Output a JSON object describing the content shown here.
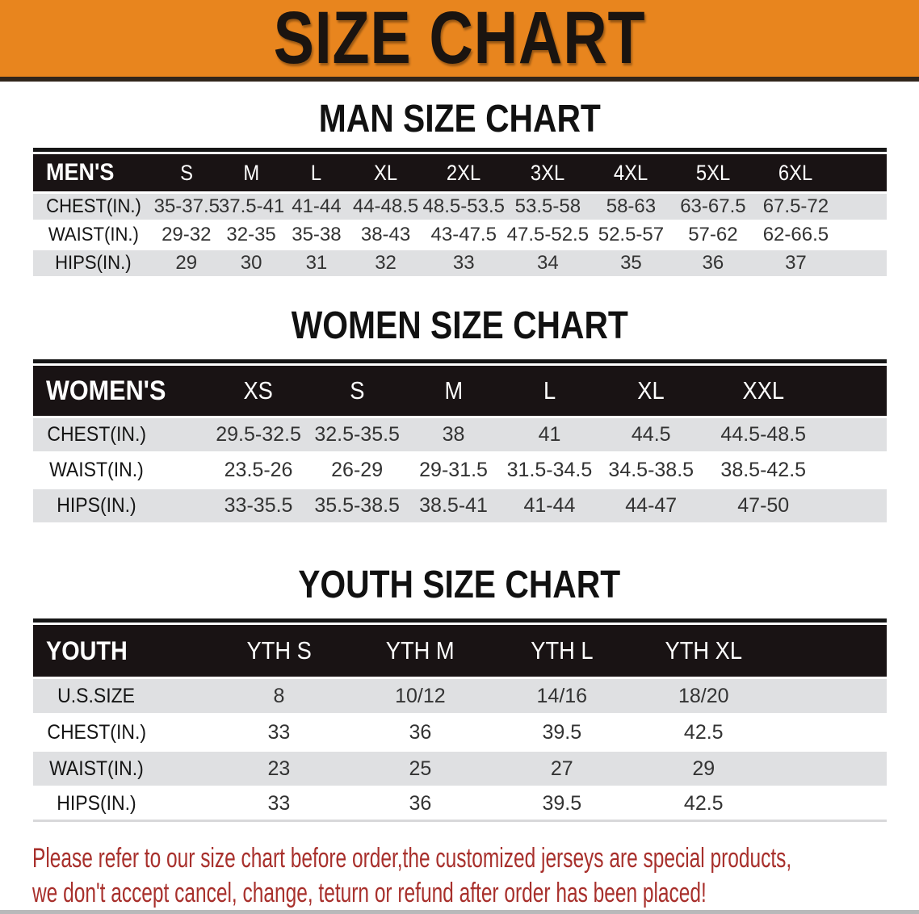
{
  "banner": {
    "title": "SIZE CHART"
  },
  "colors": {
    "banner_bg": "#E8851E",
    "banner_text": "#1A1410",
    "table_header_bg": "#191314",
    "row_gray": "#DFE0E2",
    "disclaimer_red": "#A8302C",
    "bottom_bar": "#B8B9BA"
  },
  "tables": [
    {
      "id": "men",
      "heading": "MAN SIZE CHART",
      "label": "MEN'S",
      "columns": [
        "S",
        "M",
        "L",
        "XL",
        "2XL",
        "3XL",
        "4XL",
        "5XL",
        "6XL"
      ],
      "rows": [
        {
          "label": "CHEST(IN.)",
          "values": [
            "35-37.5",
            "37.5-41",
            "41-44",
            "44-48.5",
            "48.5-53.5",
            "53.5-58",
            "58-63",
            "63-67.5",
            "67.5-72"
          ]
        },
        {
          "label": "WAIST(IN.)",
          "values": [
            "29-32",
            "32-35",
            "35-38",
            "38-43",
            "43-47.5",
            "47.5-52.5",
            "52.5-57",
            "57-62",
            "62-66.5"
          ]
        },
        {
          "label": "HIPS(IN.)",
          "values": [
            "29",
            "30",
            "31",
            "32",
            "33",
            "34",
            "35",
            "36",
            "37"
          ]
        }
      ]
    },
    {
      "id": "women",
      "heading": "WOMEN SIZE CHART",
      "label": "WOMEN'S",
      "columns": [
        "XS",
        "S",
        "M",
        "L",
        "XL",
        "XXL"
      ],
      "rows": [
        {
          "label": "CHEST(IN.)",
          "values": [
            "29.5-32.5",
            "32.5-35.5",
            "38",
            "41",
            "44.5",
            "44.5-48.5"
          ]
        },
        {
          "label": "WAIST(IN.)",
          "values": [
            "23.5-26",
            "26-29",
            "29-31.5",
            "31.5-34.5",
            "34.5-38.5",
            "38.5-42.5"
          ]
        },
        {
          "label": "HIPS(IN.)",
          "values": [
            "33-35.5",
            "35.5-38.5",
            "38.5-41",
            "41-44",
            "44-47",
            "47-50"
          ]
        }
      ]
    },
    {
      "id": "youth",
      "heading": "YOUTH SIZE CHART",
      "label": "YOUTH",
      "columns": [
        "YTH S",
        "YTH M",
        "YTH L",
        "YTH XL"
      ],
      "rows": [
        {
          "label": "U.S.SIZE",
          "values": [
            "8",
            "10/12",
            "14/16",
            "18/20"
          ]
        },
        {
          "label": "CHEST(IN.)",
          "values": [
            "33",
            "36",
            "39.5",
            "42.5"
          ]
        },
        {
          "label": "WAIST(IN.)",
          "values": [
            "23",
            "25",
            "27",
            "29"
          ]
        },
        {
          "label": "HIPS(IN.)",
          "values": [
            "33",
            "36",
            "39.5",
            "42.5"
          ]
        }
      ]
    }
  ],
  "disclaimer": {
    "lines": [
      "Please refer to our size chart before order,the customized jerseys are special products,",
      "we don't accept cancel, change, teturn or refund after order has been placed!"
    ]
  }
}
